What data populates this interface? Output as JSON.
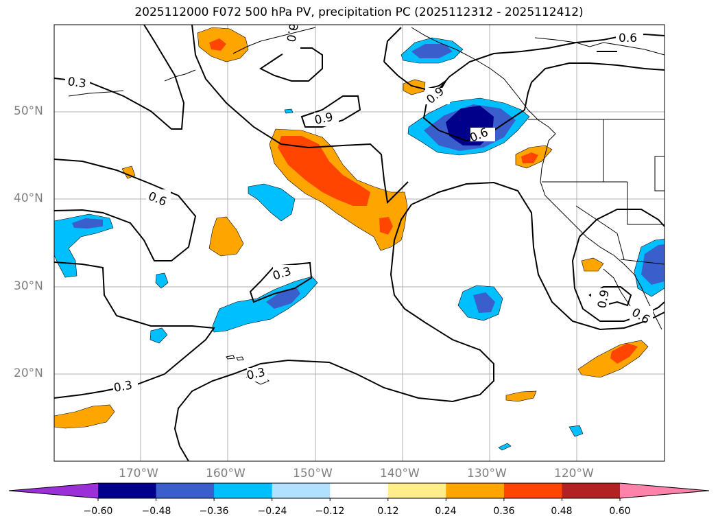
{
  "title": "2025112000 F072 500 hPa PV, precipitation PC (2025112312 - 2025112412)",
  "lat_labels": [
    "50°N",
    "40°N",
    "30°N",
    "20°N"
  ],
  "lon_labels": [
    "170°W",
    "160°W",
    "150°W",
    "140°W",
    "130°W",
    "120°W"
  ],
  "contour_labels": [
    "0.6",
    "0.3",
    "0.6",
    "0.9",
    "0.6",
    "0.9",
    "0.6",
    "0.3",
    "0.3",
    "0.3",
    "0.9",
    "0.6"
  ],
  "colorbar": {
    "ticks": [
      "−0.60",
      "−0.48",
      "−0.36",
      "−0.24",
      "−0.12",
      "0.12",
      "0.24",
      "0.36",
      "0.48",
      "0.60"
    ],
    "colors": [
      "#9b30d9",
      "#00008b",
      "#3a5fcd",
      "#00bfff",
      "#b0e2ff",
      "#ffffff",
      "#ffec8b",
      "#ffa500",
      "#ff4500",
      "#b22222",
      "#ff82ab"
    ]
  }
}
